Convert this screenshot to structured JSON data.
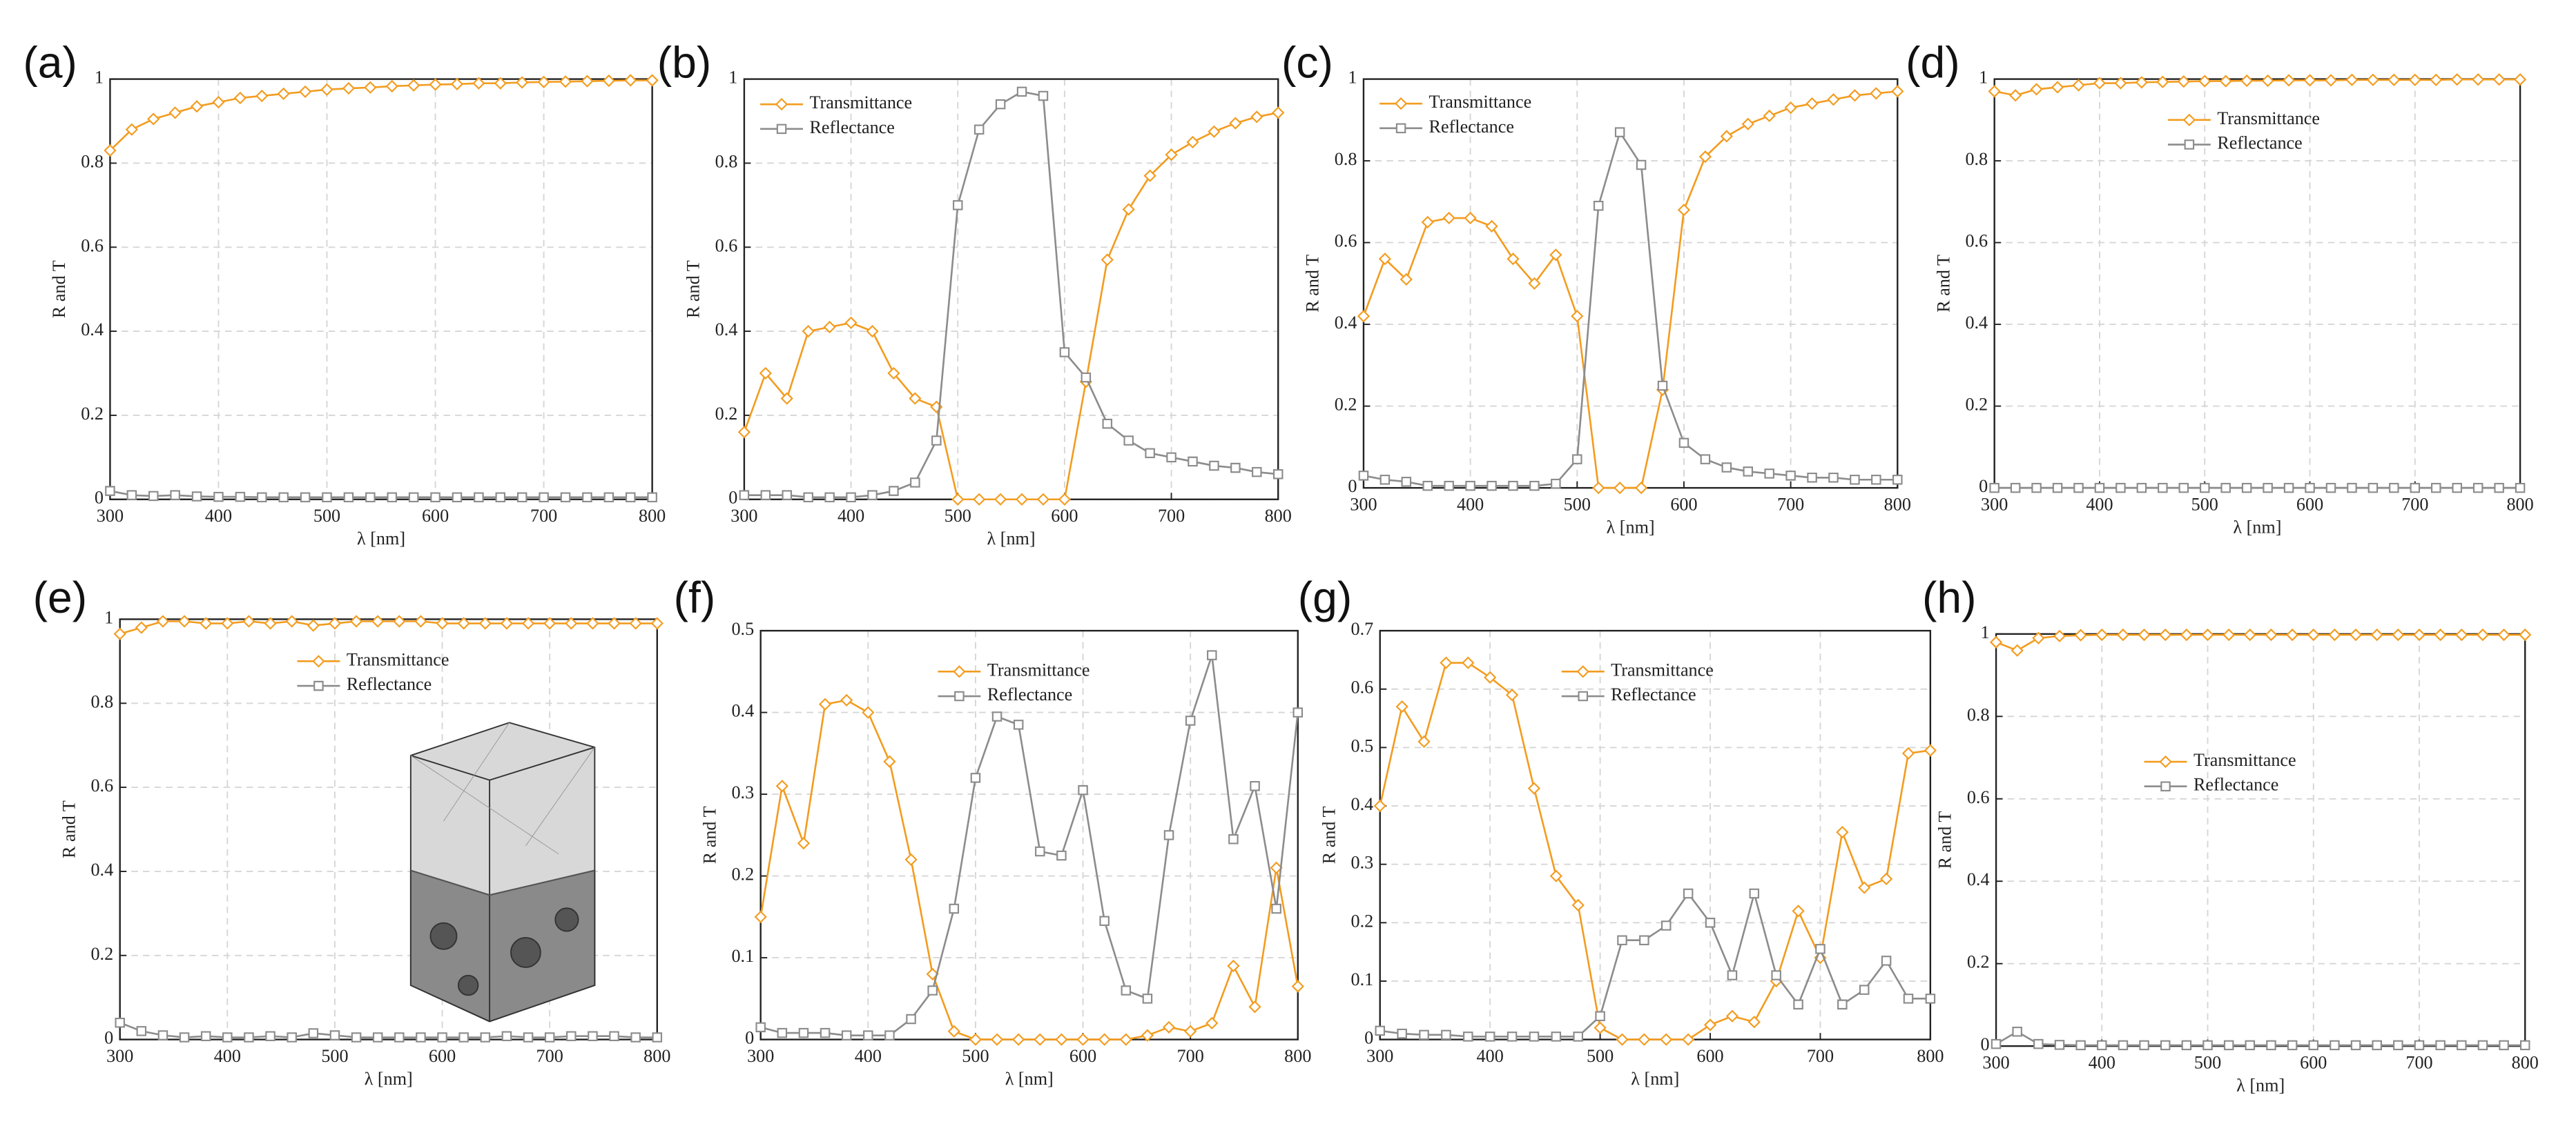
{
  "chart_data": [
    {
      "type": "line",
      "label": "(a)",
      "xlabel": "λ [nm]",
      "ylabel": "R and T",
      "grid": true,
      "x": [
        300,
        320,
        340,
        360,
        380,
        400,
        420,
        440,
        460,
        480,
        500,
        520,
        540,
        560,
        580,
        600,
        620,
        640,
        660,
        680,
        700,
        720,
        740,
        760,
        780,
        800
      ],
      "xlim": [
        300,
        800
      ],
      "xticks": [
        300,
        400,
        500,
        600,
        700,
        800
      ],
      "ylim": [
        0,
        1
      ],
      "yticks": [
        0,
        0.2,
        0.4,
        0.6,
        0.8,
        1
      ],
      "series": [
        {
          "color": "#f39c1f",
          "marker": "diamond",
          "values": [
            0.83,
            0.88,
            0.905,
            0.92,
            0.935,
            0.945,
            0.955,
            0.96,
            0.965,
            0.97,
            0.975,
            0.978,
            0.98,
            0.983,
            0.985,
            0.987,
            0.988,
            0.99,
            0.99,
            0.992,
            0.993,
            0.994,
            0.995,
            0.996,
            0.997,
            0.997
          ]
        },
        {
          "color": "#8c8c8c",
          "marker": "square",
          "values": [
            0.02,
            0.01,
            0.008,
            0.01,
            0.007,
            0.006,
            0.006,
            0.005,
            0.005,
            0.005,
            0.005,
            0.005,
            0.005,
            0.005,
            0.005,
            0.005,
            0.005,
            0.005,
            0.005,
            0.005,
            0.005,
            0.005,
            0.005,
            0.005,
            0.005,
            0.005
          ]
        }
      ]
    },
    {
      "type": "line",
      "label": "(b)",
      "xlabel": "λ [nm]",
      "ylabel": "R and T",
      "grid": true,
      "legend": "upper left",
      "x": [
        300,
        320,
        340,
        360,
        380,
        400,
        420,
        440,
        460,
        480,
        500,
        520,
        540,
        560,
        580,
        600,
        620,
        640,
        660,
        680,
        700,
        720,
        740,
        760,
        780,
        800
      ],
      "xlim": [
        300,
        800
      ],
      "xticks": [
        300,
        400,
        500,
        600,
        700,
        800
      ],
      "ylim": [
        0,
        1
      ],
      "yticks": [
        0,
        0.2,
        0.4,
        0.6,
        0.8,
        1
      ],
      "series": [
        {
          "name": "Transmittance",
          "color": "#f39c1f",
          "marker": "diamond",
          "values": [
            0.16,
            0.3,
            0.24,
            0.4,
            0.41,
            0.42,
            0.4,
            0.3,
            0.24,
            0.22,
            0,
            0,
            0,
            0,
            0,
            0,
            0.28,
            0.57,
            0.69,
            0.77,
            0.82,
            0.85,
            0.875,
            0.895,
            0.91,
            0.92
          ]
        },
        {
          "name": "Reflectance",
          "color": "#8c8c8c",
          "marker": "square",
          "values": [
            0.01,
            0.01,
            0.01,
            0.005,
            0.005,
            0.005,
            0.01,
            0.02,
            0.04,
            0.14,
            0.7,
            0.88,
            0.94,
            0.97,
            0.96,
            0.35,
            0.29,
            0.18,
            0.14,
            0.11,
            0.1,
            0.09,
            0.08,
            0.075,
            0.065,
            0.06
          ]
        }
      ]
    },
    {
      "type": "line",
      "label": "(c)",
      "xlabel": "λ [nm]",
      "ylabel": "R and T",
      "grid": true,
      "legend": "upper left",
      "x": [
        300,
        320,
        340,
        360,
        380,
        400,
        420,
        440,
        460,
        480,
        500,
        520,
        540,
        560,
        580,
        600,
        620,
        640,
        660,
        680,
        700,
        720,
        740,
        760,
        780,
        800
      ],
      "xlim": [
        300,
        800
      ],
      "xticks": [
        300,
        400,
        500,
        600,
        700,
        800
      ],
      "ylim": [
        0,
        1
      ],
      "yticks": [
        0,
        0.2,
        0.4,
        0.6,
        0.8,
        1
      ],
      "series": [
        {
          "name": "Transmittance",
          "color": "#f39c1f",
          "marker": "diamond",
          "values": [
            0.42,
            0.56,
            0.51,
            0.65,
            0.66,
            0.66,
            0.64,
            0.56,
            0.5,
            0.57,
            0.42,
            0,
            0,
            0,
            0.24,
            0.68,
            0.81,
            0.86,
            0.89,
            0.91,
            0.93,
            0.94,
            0.95,
            0.96,
            0.965,
            0.97
          ]
        },
        {
          "name": "Reflectance",
          "color": "#8c8c8c",
          "marker": "square",
          "values": [
            0.03,
            0.02,
            0.015,
            0.005,
            0.005,
            0.005,
            0.005,
            0.005,
            0.005,
            0.01,
            0.07,
            0.69,
            0.87,
            0.79,
            0.25,
            0.11,
            0.07,
            0.05,
            0.04,
            0.035,
            0.03,
            0.025,
            0.025,
            0.02,
            0.02,
            0.02
          ]
        }
      ]
    },
    {
      "type": "line",
      "label": "(d)",
      "xlabel": "λ [nm]",
      "ylabel": "R and T",
      "grid": true,
      "legend": "upper center",
      "x": [
        300,
        320,
        340,
        360,
        380,
        400,
        420,
        440,
        460,
        480,
        500,
        520,
        540,
        560,
        580,
        600,
        620,
        640,
        660,
        680,
        700,
        720,
        740,
        760,
        780,
        800
      ],
      "xlim": [
        300,
        800
      ],
      "xticks": [
        300,
        400,
        500,
        600,
        700,
        800
      ],
      "ylim": [
        0,
        1
      ],
      "yticks": [
        0,
        0.2,
        0.4,
        0.6,
        0.8,
        1
      ],
      "series": [
        {
          "name": "Transmittance",
          "color": "#f39c1f",
          "marker": "diamond",
          "values": [
            0.97,
            0.96,
            0.975,
            0.98,
            0.985,
            0.99,
            0.99,
            0.992,
            0.993,
            0.994,
            0.995,
            0.995,
            0.996,
            0.996,
            0.997,
            0.997,
            0.997,
            0.998,
            0.998,
            0.998,
            0.998,
            0.998,
            0.999,
            0.999,
            0.999,
            0.999
          ]
        },
        {
          "name": "Reflectance",
          "color": "#8c8c8c",
          "marker": "square",
          "values": [
            0,
            0,
            0,
            0,
            0,
            0,
            0,
            0,
            0,
            0,
            0,
            0,
            0,
            0,
            0,
            0,
            0,
            0,
            0,
            0,
            0,
            0,
            0,
            0,
            0,
            0
          ]
        }
      ]
    },
    {
      "type": "line",
      "label": "(e)",
      "xlabel": "λ [nm]",
      "ylabel": "R and T",
      "grid": true,
      "legend": "upper center",
      "x": [
        300,
        320,
        340,
        360,
        380,
        400,
        420,
        440,
        460,
        480,
        500,
        520,
        540,
        560,
        580,
        600,
        620,
        640,
        660,
        680,
        700,
        720,
        740,
        760,
        780,
        800
      ],
      "xlim": [
        300,
        800
      ],
      "xticks": [
        300,
        400,
        500,
        600,
        700,
        800
      ],
      "ylim": [
        0,
        1
      ],
      "yticks": [
        0,
        0.2,
        0.4,
        0.6,
        0.8,
        1
      ],
      "series": [
        {
          "name": "Transmittance",
          "color": "#f39c1f",
          "marker": "diamond",
          "values": [
            0.965,
            0.98,
            0.995,
            0.995,
            0.99,
            0.99,
            0.995,
            0.99,
            0.995,
            0.985,
            0.99,
            0.995,
            0.995,
            0.995,
            0.995,
            0.99,
            0.99,
            0.99,
            0.99,
            0.99,
            0.99,
            0.99,
            0.99,
            0.99,
            0.99,
            0.99
          ]
        },
        {
          "name": "Reflectance",
          "color": "#8c8c8c",
          "marker": "square",
          "values": [
            0.04,
            0.02,
            0.01,
            0.005,
            0.008,
            0.005,
            0.005,
            0.008,
            0.005,
            0.015,
            0.01,
            0.005,
            0.005,
            0.005,
            0.005,
            0.005,
            0.005,
            0.005,
            0.008,
            0.005,
            0.005,
            0.008,
            0.008,
            0.008,
            0.005,
            0.005
          ]
        }
      ]
    },
    {
      "type": "line",
      "label": "(f)",
      "xlabel": "λ [nm]",
      "ylabel": "R and T",
      "grid": true,
      "legend": "upper center",
      "x": [
        300,
        320,
        340,
        360,
        380,
        400,
        420,
        440,
        460,
        480,
        500,
        520,
        540,
        560,
        580,
        600,
        620,
        640,
        660,
        680,
        700,
        720,
        740,
        760,
        780,
        800
      ],
      "xlim": [
        300,
        800
      ],
      "xticks": [
        300,
        400,
        500,
        600,
        700,
        800
      ],
      "ylim": [
        0,
        0.5
      ],
      "yticks": [
        0,
        0.1,
        0.2,
        0.3,
        0.4,
        0.5
      ],
      "series": [
        {
          "name": "Transmittance",
          "color": "#f39c1f",
          "marker": "diamond",
          "values": [
            0.15,
            0.31,
            0.24,
            0.41,
            0.415,
            0.4,
            0.34,
            0.22,
            0.08,
            0.01,
            0,
            0,
            0,
            0,
            0,
            0,
            0,
            0,
            0.005,
            0.015,
            0.01,
            0.02,
            0.09,
            0.04,
            0.21,
            0.065
          ]
        },
        {
          "name": "Reflectance",
          "color": "#8c8c8c",
          "marker": "square",
          "values": [
            0.015,
            0.008,
            0.008,
            0.008,
            0.005,
            0.005,
            0.005,
            0.025,
            0.06,
            0.16,
            0.32,
            0.395,
            0.385,
            0.23,
            0.225,
            0.305,
            0.145,
            0.06,
            0.05,
            0.25,
            0.39,
            0.47,
            0.245,
            0.31,
            0.16,
            0.4
          ]
        }
      ]
    },
    {
      "type": "line",
      "label": "(g)",
      "xlabel": "λ [nm]",
      "ylabel": "R and T",
      "grid": true,
      "legend": "upper center",
      "x": [
        300,
        320,
        340,
        360,
        380,
        400,
        420,
        440,
        460,
        480,
        500,
        520,
        540,
        560,
        580,
        600,
        620,
        640,
        660,
        680,
        700,
        720,
        740,
        760,
        780,
        800
      ],
      "xlim": [
        300,
        800
      ],
      "xticks": [
        300,
        400,
        500,
        600,
        700,
        800
      ],
      "ylim": [
        0,
        0.7
      ],
      "yticks": [
        0,
        0.1,
        0.2,
        0.3,
        0.4,
        0.5,
        0.6,
        0.7
      ],
      "series": [
        {
          "name": "Transmittance",
          "color": "#f39c1f",
          "marker": "diamond",
          "values": [
            0.4,
            0.57,
            0.51,
            0.645,
            0.645,
            0.62,
            0.59,
            0.43,
            0.28,
            0.23,
            0.02,
            0,
            0,
            0,
            0,
            0.025,
            0.04,
            0.03,
            0.1,
            0.22,
            0.14,
            0.355,
            0.26,
            0.275,
            0.49,
            0.495
          ]
        },
        {
          "name": "Reflectance",
          "color": "#8c8c8c",
          "marker": "square",
          "values": [
            0.015,
            0.01,
            0.008,
            0.008,
            0.005,
            0.005,
            0.005,
            0.005,
            0.005,
            0.005,
            0.04,
            0.17,
            0.17,
            0.195,
            0.25,
            0.2,
            0.11,
            0.25,
            0.11,
            0.06,
            0.155,
            0.06,
            0.085,
            0.135,
            0.07,
            0.07
          ]
        }
      ]
    },
    {
      "type": "line",
      "label": "(h)",
      "xlabel": "λ [nm]",
      "ylabel": "R and T",
      "grid": true,
      "legend": "center",
      "x": [
        300,
        320,
        340,
        360,
        380,
        400,
        420,
        440,
        460,
        480,
        500,
        520,
        540,
        560,
        580,
        600,
        620,
        640,
        660,
        680,
        700,
        720,
        740,
        760,
        780,
        800
      ],
      "xlim": [
        300,
        800
      ],
      "xticks": [
        300,
        400,
        500,
        600,
        700,
        800
      ],
      "ylim": [
        0,
        1
      ],
      "yticks": [
        0,
        0.2,
        0.4,
        0.6,
        0.8,
        1
      ],
      "series": [
        {
          "name": "Transmittance",
          "color": "#f39c1f",
          "marker": "diamond",
          "values": [
            0.98,
            0.96,
            0.99,
            0.995,
            0.997,
            0.998,
            0.998,
            0.998,
            0.998,
            0.998,
            0.998,
            0.998,
            0.998,
            0.998,
            0.998,
            0.998,
            0.998,
            0.998,
            0.998,
            0.998,
            0.998,
            0.998,
            0.998,
            0.998,
            0.998,
            0.998
          ]
        },
        {
          "name": "Reflectance",
          "color": "#8c8c8c",
          "marker": "square",
          "values": [
            0.005,
            0.035,
            0.005,
            0.003,
            0.002,
            0.002,
            0.002,
            0.002,
            0.002,
            0.002,
            0.002,
            0.002,
            0.002,
            0.002,
            0.002,
            0.002,
            0.002,
            0.002,
            0.002,
            0.002,
            0.002,
            0.002,
            0.002,
            0.002,
            0.002,
            0.002
          ]
        }
      ]
    }
  ]
}
